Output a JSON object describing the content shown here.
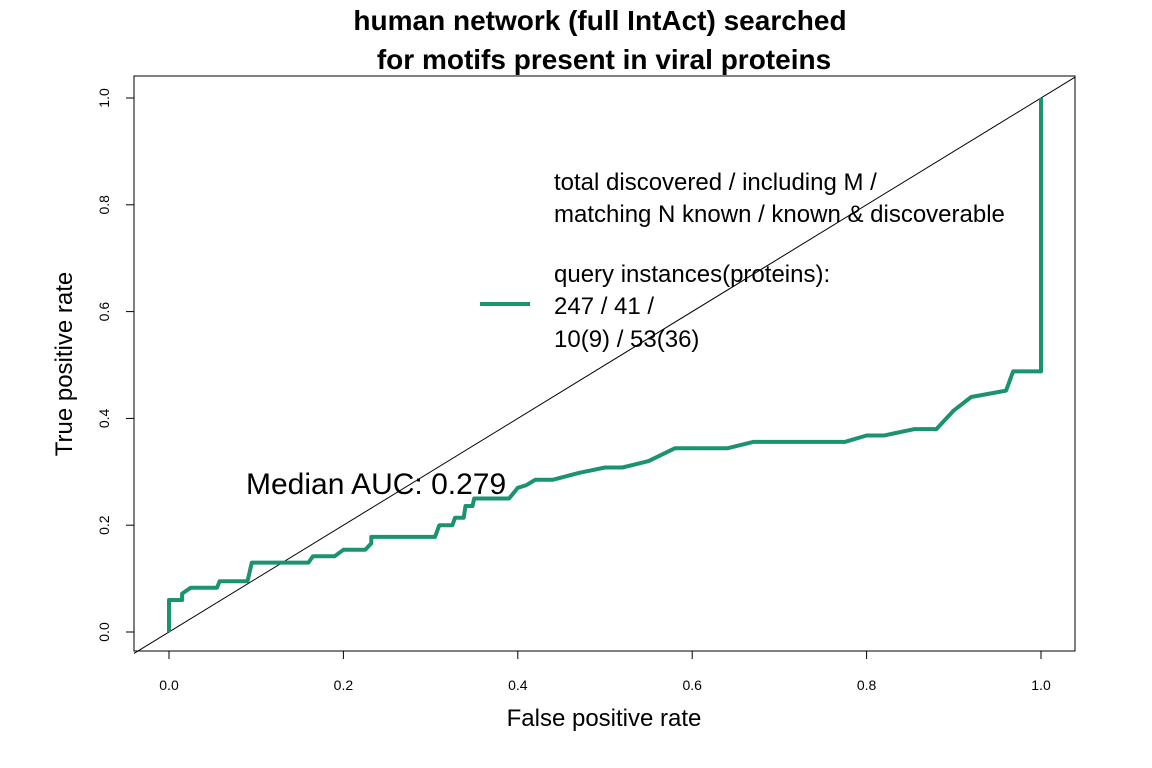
{
  "chart_data": {
    "type": "line",
    "title_line1": "human network (full IntAct) searched",
    "title_line2": "for motifs present in viral proteins",
    "xlabel": "False positive rate",
    "ylabel": "True positive rate",
    "xlim": [
      0,
      1
    ],
    "ylim": [
      0,
      1
    ],
    "x_ticks": [
      "0.0",
      "0.2",
      "0.4",
      "0.6",
      "0.8",
      "1.0"
    ],
    "y_ticks": [
      "0.0",
      "0.2",
      "0.4",
      "0.6",
      "0.8",
      "1.0"
    ],
    "grid": false,
    "legend": {
      "placement": "top-right",
      "header_line1": "total discovered / including M /",
      "header_line2": "matching N known / known & discoverable",
      "entry_line1": "query instances(proteins):",
      "entry_line2": "247 / 41 /",
      "entry_line3": "10(9) / 53(36)",
      "color": "#1b9270"
    },
    "annotation": "Median AUC: 0.279",
    "reference_line": {
      "x": [
        0,
        1
      ],
      "y": [
        0,
        1
      ],
      "color": "#000000"
    },
    "series": [
      {
        "color": "#1b9270",
        "x": [
          0,
          0,
          0.015,
          0.015,
          0.025,
          0.055,
          0.058,
          0.09,
          0.095,
          0.16,
          0.165,
          0.19,
          0.2,
          0.225,
          0.232,
          0.232,
          0.305,
          0.31,
          0.325,
          0.328,
          0.338,
          0.34,
          0.348,
          0.35,
          0.36,
          0.39,
          0.4,
          0.41,
          0.42,
          0.44,
          0.47,
          0.5,
          0.52,
          0.55,
          0.58,
          0.6,
          0.64,
          0.67,
          0.72,
          0.775,
          0.8,
          0.82,
          0.855,
          0.88,
          0.9,
          0.92,
          0.96,
          0.968,
          1.0,
          1.0
        ],
        "y": [
          0,
          0.06,
          0.06,
          0.072,
          0.083,
          0.083,
          0.095,
          0.095,
          0.13,
          0.13,
          0.142,
          0.142,
          0.154,
          0.154,
          0.166,
          0.178,
          0.178,
          0.2,
          0.2,
          0.214,
          0.214,
          0.236,
          0.236,
          0.25,
          0.25,
          0.25,
          0.27,
          0.275,
          0.285,
          0.285,
          0.298,
          0.308,
          0.308,
          0.32,
          0.344,
          0.344,
          0.344,
          0.356,
          0.356,
          0.356,
          0.368,
          0.368,
          0.38,
          0.38,
          0.415,
          0.44,
          0.452,
          0.488,
          0.488,
          1.0
        ]
      }
    ]
  }
}
